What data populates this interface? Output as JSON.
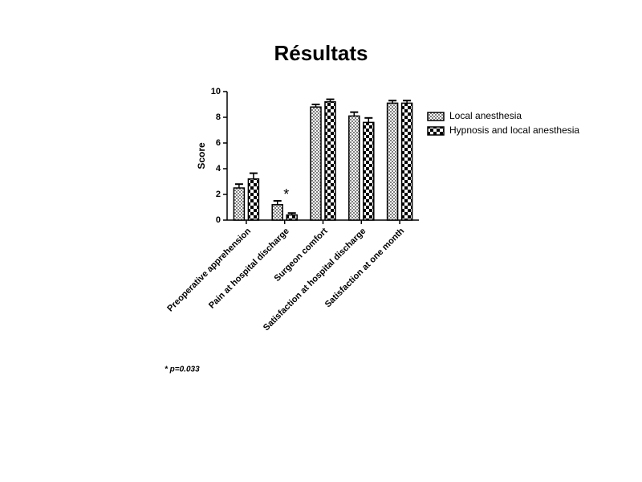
{
  "chart_data": {
    "type": "bar",
    "title": "Résultats",
    "y_label": "Score",
    "categories": [
      "Preoperative apprehension",
      "Pain at hospital discharge",
      "Surgeon comfort",
      "Satisfaction at hospital discharge",
      "Satisfaction at one month"
    ],
    "series": [
      {
        "name": "Local anesthesia",
        "color": "#808080",
        "values": [
          2.5,
          1.2,
          8.8,
          8.1,
          9.1
        ],
        "errors": [
          0.3,
          0.3,
          0.2,
          0.3,
          0.2
        ]
      },
      {
        "name": "Hypnosis and local anesthesia",
        "color": "#000000",
        "values": [
          3.2,
          0.4,
          9.2,
          7.6,
          9.1
        ],
        "errors": [
          0.45,
          0.15,
          0.2,
          0.35,
          0.2
        ]
      }
    ],
    "ylim": [
      0,
      10
    ],
    "yticks": [
      0,
      2,
      4,
      6,
      8,
      10
    ],
    "grid": false,
    "legend": "right",
    "significance_marker": "*",
    "footnote": "* p=0.033"
  }
}
